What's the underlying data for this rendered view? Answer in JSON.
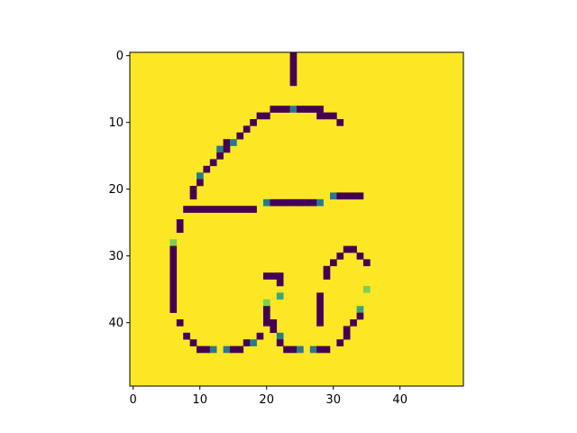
{
  "chart_data": {
    "type": "heatmap",
    "title": "",
    "xlabel": "",
    "ylabel": "",
    "xlim": [
      -0.5,
      49.5
    ],
    "ylim": [
      49.5,
      -0.5
    ],
    "x_ticks": [
      0,
      10,
      20,
      30,
      40
    ],
    "y_ticks": [
      0,
      10,
      20,
      30,
      40
    ],
    "x_tick_labels": [
      "0",
      "10",
      "20",
      "30",
      "40"
    ],
    "y_tick_labels": [
      "0",
      "10",
      "20",
      "30",
      "40"
    ],
    "grid": false,
    "colormap": "viridis",
    "background_value": 1.0,
    "colors": {
      "background": "#fde725",
      "dark": "#440154",
      "teal": "#21918c",
      "light_green": "#b5de2b",
      "axis": "#000000"
    },
    "cells": [
      [
        24,
        0,
        0
      ],
      [
        24,
        1,
        0
      ],
      [
        24,
        2,
        0
      ],
      [
        24,
        3,
        0
      ],
      [
        24,
        4,
        0
      ],
      [
        21,
        8,
        0
      ],
      [
        22,
        8,
        0
      ],
      [
        23,
        8,
        0
      ],
      [
        24,
        8,
        0.4
      ],
      [
        25,
        8,
        0
      ],
      [
        26,
        8,
        0
      ],
      [
        27,
        8,
        0
      ],
      [
        28,
        8,
        0
      ],
      [
        19,
        9,
        0
      ],
      [
        20,
        9,
        0
      ],
      [
        28,
        9,
        0
      ],
      [
        29,
        9,
        0
      ],
      [
        30,
        9,
        0
      ],
      [
        18,
        10,
        0
      ],
      [
        31,
        10,
        0
      ],
      [
        17,
        11,
        0
      ],
      [
        16,
        12,
        0
      ],
      [
        14,
        13,
        0
      ],
      [
        15,
        13,
        0.4
      ],
      [
        13,
        14,
        0.4
      ],
      [
        14,
        14,
        0
      ],
      [
        13,
        15,
        0
      ],
      [
        12,
        16,
        0
      ],
      [
        11,
        17,
        0
      ],
      [
        10,
        18,
        0.4
      ],
      [
        10,
        19,
        0
      ],
      [
        9,
        20,
        0
      ],
      [
        9,
        21,
        0
      ],
      [
        30,
        21,
        0.4
      ],
      [
        31,
        21,
        0
      ],
      [
        32,
        21,
        0
      ],
      [
        33,
        21,
        0
      ],
      [
        34,
        21,
        0
      ],
      [
        20,
        22,
        0.4
      ],
      [
        21,
        22,
        0
      ],
      [
        22,
        22,
        0
      ],
      [
        23,
        22,
        0
      ],
      [
        24,
        22,
        0
      ],
      [
        25,
        22,
        0
      ],
      [
        26,
        22,
        0
      ],
      [
        27,
        22,
        0
      ],
      [
        28,
        22,
        0.4
      ],
      [
        8,
        23,
        0
      ],
      [
        9,
        23,
        0
      ],
      [
        10,
        23,
        0
      ],
      [
        11,
        23,
        0
      ],
      [
        12,
        23,
        0
      ],
      [
        13,
        23,
        0
      ],
      [
        14,
        23,
        0
      ],
      [
        15,
        23,
        0
      ],
      [
        16,
        23,
        0
      ],
      [
        17,
        23,
        0
      ],
      [
        18,
        23,
        0
      ],
      [
        7,
        25,
        0
      ],
      [
        7,
        26,
        0
      ],
      [
        6,
        28,
        0.8
      ],
      [
        6,
        29,
        0
      ],
      [
        32,
        29,
        0
      ],
      [
        33,
        29,
        0
      ],
      [
        6,
        30,
        0
      ],
      [
        31,
        30,
        0
      ],
      [
        34,
        30,
        0
      ],
      [
        6,
        31,
        0
      ],
      [
        30,
        31,
        0
      ],
      [
        35,
        31,
        0
      ],
      [
        6,
        32,
        0
      ],
      [
        29,
        32,
        0
      ],
      [
        6,
        33,
        0
      ],
      [
        20,
        33,
        0
      ],
      [
        21,
        33,
        0
      ],
      [
        22,
        33,
        0
      ],
      [
        29,
        33,
        0
      ],
      [
        6,
        34,
        0
      ],
      [
        22,
        34,
        0
      ],
      [
        6,
        35,
        0
      ],
      [
        35,
        35,
        0.8
      ],
      [
        6,
        36,
        0
      ],
      [
        22,
        36,
        0.6
      ],
      [
        28,
        36,
        0
      ],
      [
        6,
        37,
        0
      ],
      [
        20,
        37,
        0.8
      ],
      [
        28,
        37,
        0
      ],
      [
        6,
        38,
        0
      ],
      [
        20,
        38,
        0
      ],
      [
        28,
        38,
        0
      ],
      [
        34,
        38,
        0.6
      ],
      [
        20,
        39,
        0
      ],
      [
        28,
        39,
        0
      ],
      [
        34,
        39,
        0
      ],
      [
        7,
        40,
        0
      ],
      [
        20,
        40,
        0
      ],
      [
        21,
        40,
        0
      ],
      [
        28,
        40,
        0
      ],
      [
        33,
        40,
        0
      ],
      [
        21,
        41,
        0
      ],
      [
        32,
        41,
        0
      ],
      [
        8,
        42,
        0
      ],
      [
        19,
        42,
        0
      ],
      [
        22,
        42,
        0.4
      ],
      [
        32,
        42,
        0
      ],
      [
        9,
        43,
        0
      ],
      [
        17,
        43,
        0
      ],
      [
        18,
        43,
        0.4
      ],
      [
        22,
        43,
        0
      ],
      [
        31,
        43,
        0
      ],
      [
        10,
        44,
        0
      ],
      [
        11,
        44,
        0
      ],
      [
        12,
        44,
        0.4
      ],
      [
        14,
        44,
        0.4
      ],
      [
        15,
        44,
        0
      ],
      [
        16,
        44,
        0
      ],
      [
        23,
        44,
        0
      ],
      [
        24,
        44,
        0
      ],
      [
        25,
        44,
        0.4
      ],
      [
        27,
        44,
        0.4
      ],
      [
        28,
        44,
        0
      ],
      [
        29,
        44,
        0
      ]
    ]
  }
}
